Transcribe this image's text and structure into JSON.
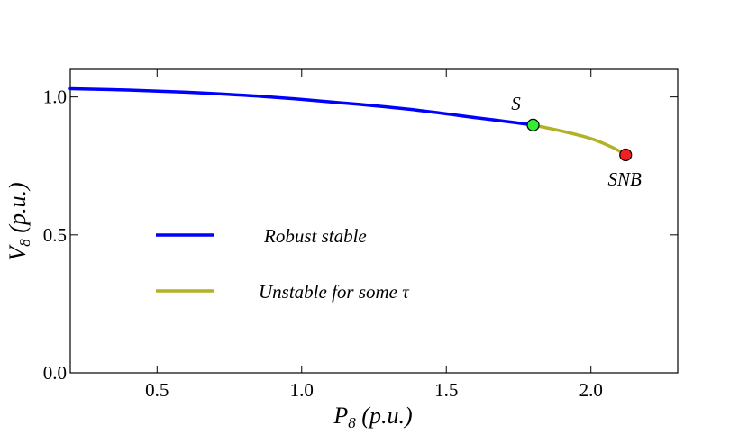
{
  "chart_data": {
    "type": "line",
    "xlabel": {
      "symbol": "P",
      "subscript": "8",
      "unit": "(p.u.)"
    },
    "ylabel": {
      "symbol": "V",
      "subscript": "8",
      "unit": "(p.u.)"
    },
    "xlim": [
      0.2,
      2.3
    ],
    "ylim": [
      0.0,
      1.1
    ],
    "xticks": [
      {
        "value": 0.5,
        "label": "0.5"
      },
      {
        "value": 1.0,
        "label": "1.0"
      },
      {
        "value": 1.5,
        "label": "1.5"
      },
      {
        "value": 2.0,
        "label": "2.0"
      }
    ],
    "yticks": [
      {
        "value": 0.0,
        "label": "0.0"
      },
      {
        "value": 0.5,
        "label": "0.5"
      },
      {
        "value": 1.0,
        "label": "1.0"
      }
    ],
    "grid": false,
    "legend_position": "center-left",
    "series": [
      {
        "name": "Robust stable",
        "color": "#0000ff",
        "x": [
          0.2,
          0.4,
          0.6,
          0.8,
          1.0,
          1.2,
          1.4,
          1.6,
          1.7,
          1.8
        ],
        "y": [
          1.03,
          1.025,
          1.017,
          1.006,
          0.991,
          0.973,
          0.952,
          0.925,
          0.912,
          0.898
        ]
      },
      {
        "name": "Unstable for some τ",
        "color": "#b2b226",
        "x": [
          1.8,
          1.9,
          2.0,
          2.06,
          2.1,
          2.12
        ],
        "y": [
          0.898,
          0.876,
          0.849,
          0.824,
          0.803,
          0.79
        ]
      }
    ],
    "points": [
      {
        "label": "S",
        "x": 1.8,
        "y": 0.898,
        "color": "#33ee33",
        "label_position": "above-left"
      },
      {
        "label": "SNB",
        "x": 2.12,
        "y": 0.79,
        "color": "#ee2222",
        "label_position": "below"
      }
    ]
  }
}
